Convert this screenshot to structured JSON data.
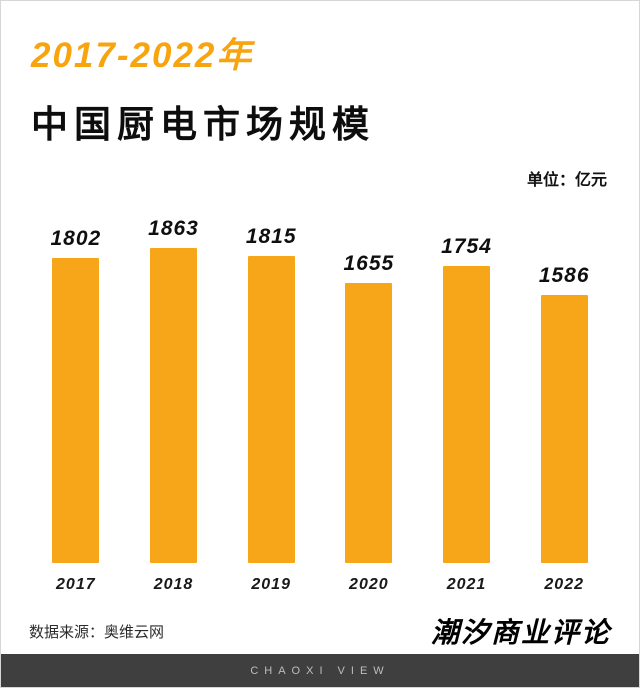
{
  "header": {
    "title_line1": "2017-2022年",
    "title_line2": "中国厨电市场规模",
    "unit_label": "单位：亿元"
  },
  "chart_data": {
    "type": "bar",
    "title": "2017-2022年 中国厨电市场规模",
    "categories": [
      "2017",
      "2018",
      "2019",
      "2020",
      "2021",
      "2022"
    ],
    "values": [
      1802,
      1863,
      1815,
      1655,
      1754,
      1586
    ],
    "xlabel": "",
    "ylabel": "亿元",
    "ylim": [
      0,
      1900
    ],
    "unit": "亿元",
    "grid": false,
    "legend": false,
    "value_labels": true,
    "bar_color": "#F7A519"
  },
  "footer": {
    "source": "数据来源：奥维云网",
    "logo": "潮汐商业评论",
    "strip_text": "CHAOXI VIEW"
  },
  "colors": {
    "accent": "#F7A519",
    "title_accent": "#F7A40E",
    "strip_bg": "#3F3F3F",
    "strip_text": "#BEBEBE"
  }
}
